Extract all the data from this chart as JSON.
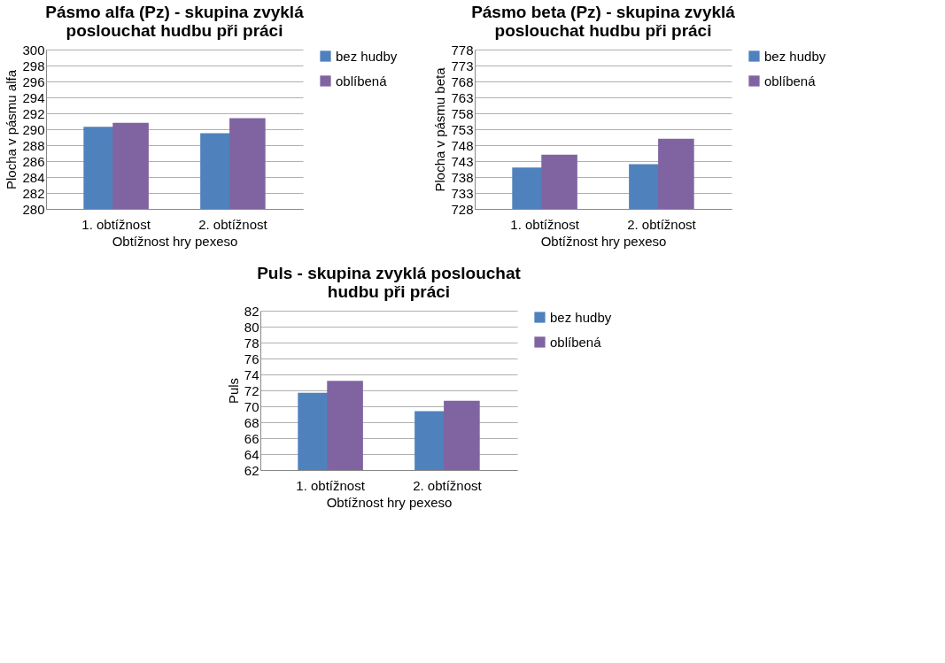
{
  "chart_data": [
    {
      "type": "bar",
      "title": [
        "Pásmo alfa (Pz) - skupina zvyklá",
        "poslouchat hudbu při práci"
      ],
      "xlabel": "Obtížnost hry pexeso",
      "ylabel": "Plocha v pásmu alfa",
      "categories": [
        "1. obtížnost",
        "2. obtížnost"
      ],
      "series": [
        {
          "name": "bez hudby",
          "color": "#4f81bd",
          "values": [
            290.3,
            289.5
          ]
        },
        {
          "name": "oblíbená",
          "color": "#8064a2",
          "values": [
            290.8,
            291.4
          ]
        }
      ],
      "ylim": [
        280,
        300
      ],
      "yticks": [
        280,
        282,
        284,
        286,
        288,
        290,
        292,
        294,
        296,
        298,
        300
      ],
      "grid": "y",
      "legend": "right"
    },
    {
      "type": "bar",
      "title": [
        "Pásmo beta (Pz) - skupina zvyklá",
        "poslouchat hudbu při práci"
      ],
      "xlabel": "Obtížnost hry pexeso",
      "ylabel": "Plocha v pásmu beta",
      "categories": [
        "1. obtížnost",
        "2. obtížnost"
      ],
      "series": [
        {
          "name": "bez hudby",
          "color": "#4f81bd",
          "values": [
            741,
            742
          ]
        },
        {
          "name": "oblíbená",
          "color": "#8064a2",
          "values": [
            745,
            750
          ]
        }
      ],
      "ylim": [
        728,
        778
      ],
      "yticks": [
        728,
        733,
        738,
        743,
        748,
        753,
        758,
        763,
        768,
        773,
        778
      ],
      "grid": "y",
      "legend": "right"
    },
    {
      "type": "bar",
      "title": [
        "Puls - skupina zvyklá poslouchat",
        "hudbu při práci"
      ],
      "xlabel": "Obtížnost hry pexeso",
      "ylabel": "Puls",
      "categories": [
        "1. obtížnost",
        "2. obtížnost"
      ],
      "series": [
        {
          "name": "bez hudby",
          "color": "#4f81bd",
          "values": [
            71.7,
            69.4
          ]
        },
        {
          "name": "oblíbená",
          "color": "#8064a2",
          "values": [
            73.2,
            70.7
          ]
        }
      ],
      "ylim": [
        62,
        82
      ],
      "yticks": [
        62,
        64,
        66,
        68,
        70,
        72,
        74,
        76,
        78,
        80,
        82
      ],
      "grid": "y",
      "legend": "right"
    }
  ]
}
